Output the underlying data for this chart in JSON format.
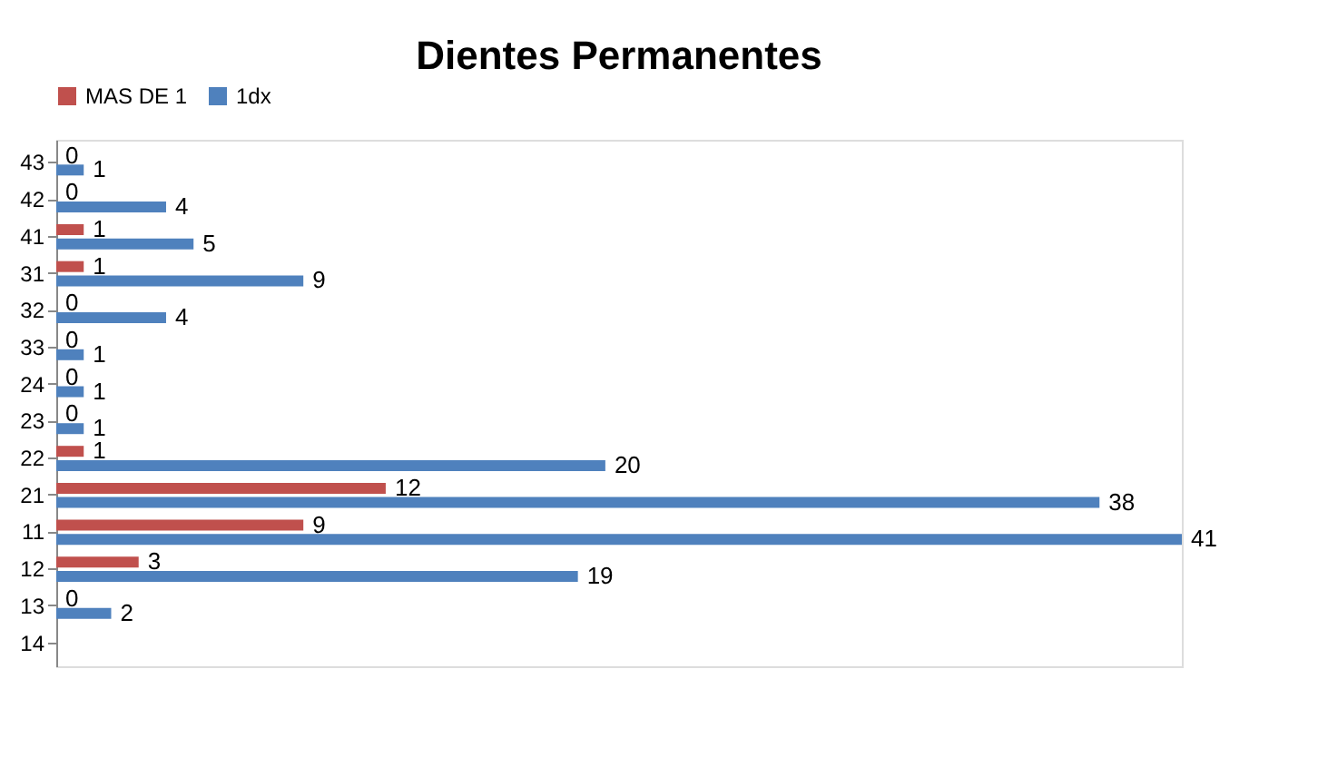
{
  "chart_data": {
    "type": "bar",
    "title": "Dientes Permanentes",
    "orientation": "horizontal",
    "categories": [
      "43",
      "42",
      "41",
      "31",
      "32",
      "33",
      "24",
      "23",
      "22",
      "21",
      "11",
      "12",
      "13",
      "14"
    ],
    "series": [
      {
        "name": "MAS DE 1",
        "color": "#c0504d",
        "values": [
          0,
          0,
          1,
          1,
          0,
          0,
          0,
          0,
          1,
          12,
          9,
          3,
          0,
          null
        ]
      },
      {
        "name": "1dx",
        "color": "#4f81bd",
        "values": [
          1,
          4,
          5,
          9,
          4,
          1,
          1,
          1,
          20,
          38,
          41,
          19,
          2,
          null
        ]
      }
    ],
    "data_labels": true,
    "legend": "top",
    "grid": false
  }
}
